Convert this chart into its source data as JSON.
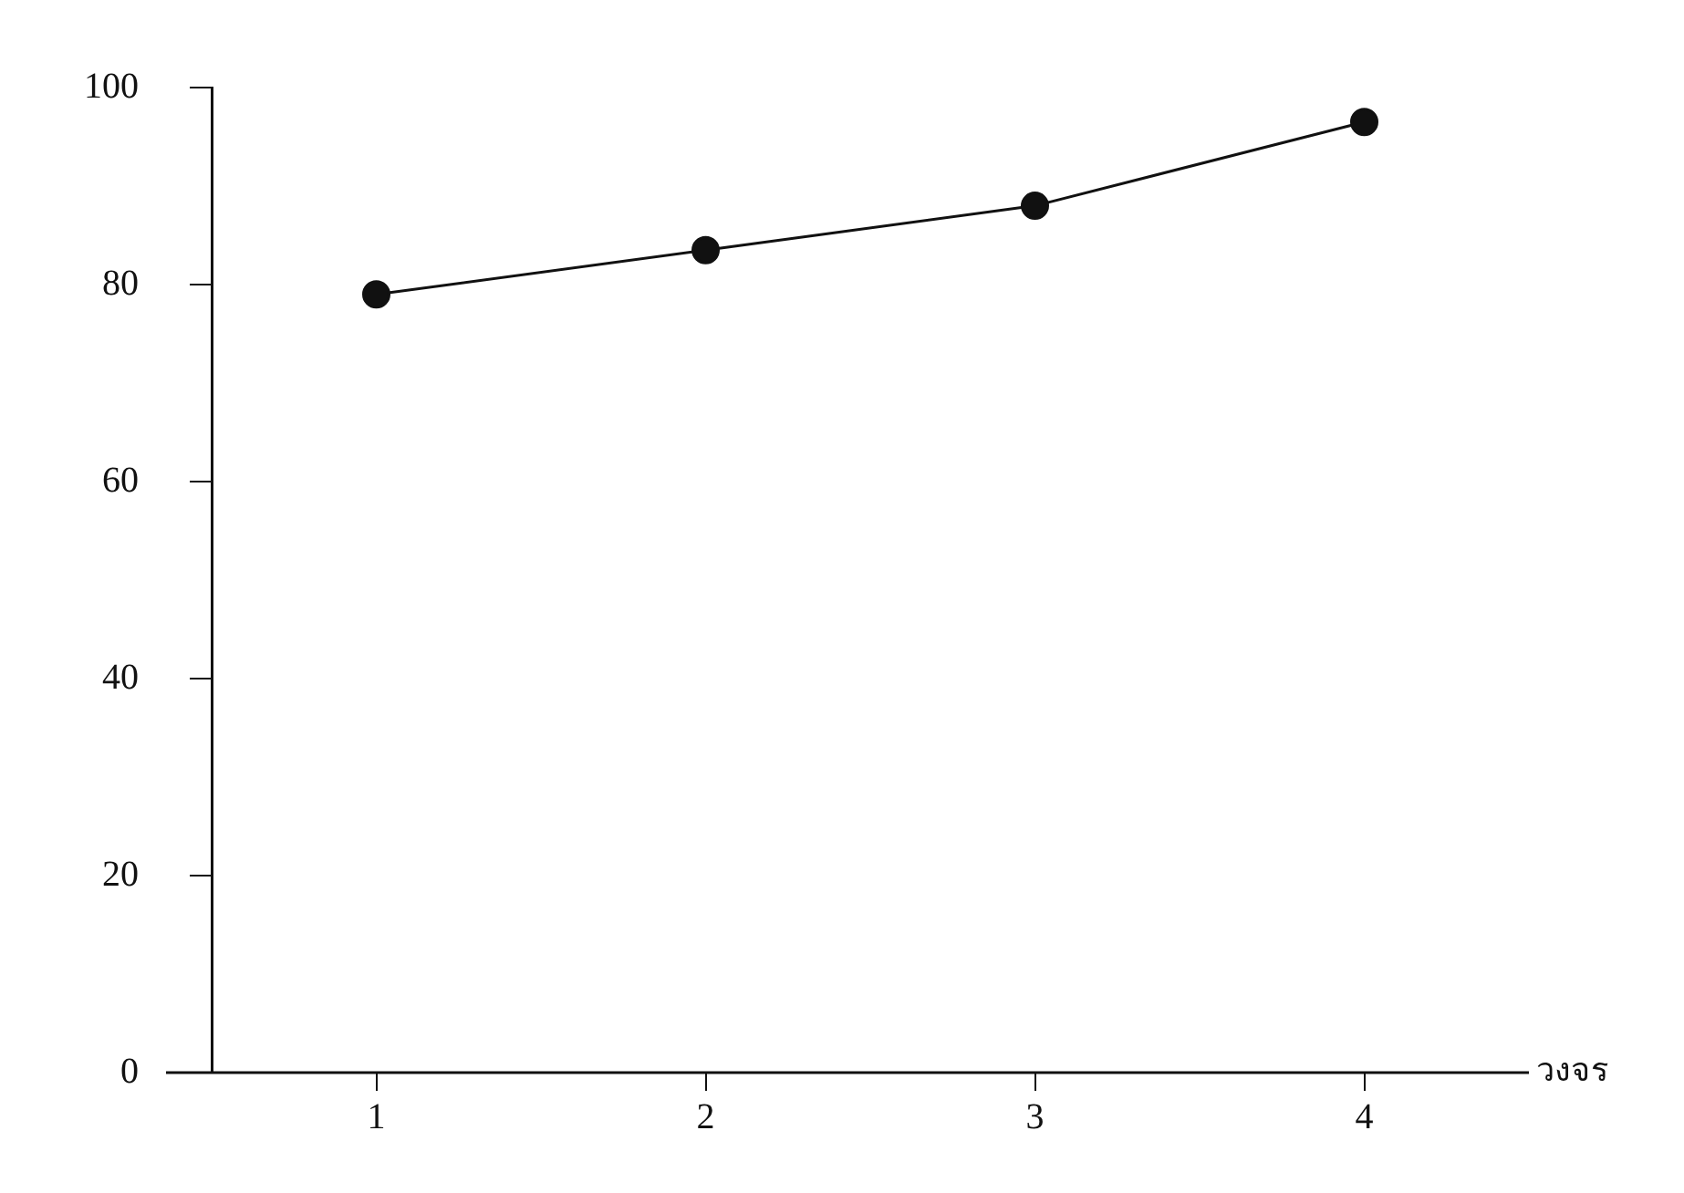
{
  "chart_data": {
    "type": "line",
    "xlabel": "วงจร",
    "categories": [
      "1",
      "2",
      "3",
      "4"
    ],
    "series": [
      {
        "color": "#111111",
        "values": [
          79,
          83.5,
          88,
          96.5
        ]
      }
    ],
    "ylim": [
      0,
      100
    ],
    "yticks": [
      0,
      20,
      40,
      60,
      80,
      100
    ],
    "grid": false,
    "legend": false,
    "marker": "circle",
    "line_style": "solid"
  }
}
